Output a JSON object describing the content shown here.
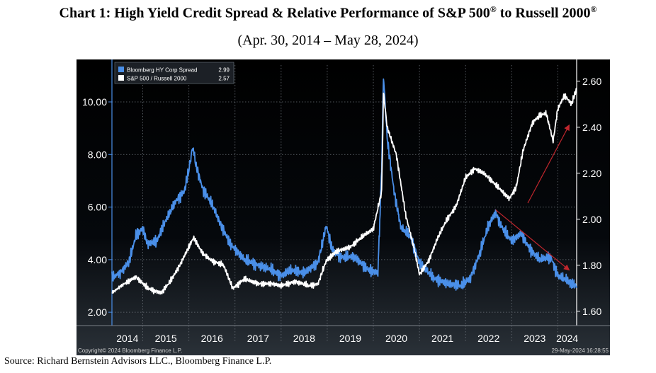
{
  "header": {
    "title_main": "Chart 1:  High Yield Credit Spread & Relative Performance of S&P 500",
    "title_reg1": "®",
    "title_mid": " to Russell 2000",
    "title_reg2": "®",
    "subtitle": "(Apr. 30, 2014 – May 28, 2024)"
  },
  "footer": {
    "source": "Source: Richard Bernstein Advisors LLC., Bloomberg Finance L.P."
  },
  "chart_data": {
    "type": "line",
    "title": "",
    "xlabel": "",
    "ylabel_left": "",
    "ylabel_right": "",
    "x_ticks": [
      "2014",
      "2015",
      "2016",
      "2017",
      "2018",
      "2019",
      "2020",
      "2021",
      "2022",
      "2023",
      "2024"
    ],
    "xlim": [
      2014.33,
      2024.41
    ],
    "y_left": {
      "lim": [
        1.6,
        11.4
      ],
      "ticks": [
        "2.00",
        "4.00",
        "6.00",
        "8.00",
        "10.00"
      ]
    },
    "y_right": {
      "lim": [
        1.55,
        2.67
      ],
      "ticks": [
        "1.60",
        "1.80",
        "2.00",
        "2.20",
        "2.40",
        "2.60"
      ]
    },
    "legend": {
      "placement": "top-left",
      "entries": [
        {
          "name": "Bloomberg HY Corp Spread",
          "last": "2.99",
          "color": "#4a8fe8"
        },
        {
          "name": "S&P 500 / Russell 2000",
          "last": "2.57",
          "color": "#ffffff"
        }
      ]
    },
    "copyright": "Copyright© 2024 Bloomberg Finance L.P.",
    "timestamp": "29-May-2024 16:28:55",
    "series": [
      {
        "name": "Bloomberg HY Corp Spread",
        "axis": "left",
        "color": "#4a8fe8",
        "x": [
          2014.33,
          2014.5,
          2014.7,
          2014.85,
          2015.0,
          2015.1,
          2015.3,
          2015.5,
          2015.7,
          2015.9,
          2016.0,
          2016.08,
          2016.15,
          2016.3,
          2016.5,
          2016.7,
          2016.9,
          2017.2,
          2017.5,
          2017.8,
          2018.0,
          2018.2,
          2018.5,
          2018.8,
          2018.98,
          2019.1,
          2019.3,
          2019.6,
          2019.9,
          2020.1,
          2020.18,
          2020.22,
          2020.3,
          2020.45,
          2020.6,
          2020.8,
          2021.0,
          2021.3,
          2021.6,
          2021.9,
          2022.1,
          2022.3,
          2022.5,
          2022.65,
          2022.8,
          2023.0,
          2023.2,
          2023.4,
          2023.6,
          2023.85,
          2024.0,
          2024.2,
          2024.41
        ],
        "y": [
          3.3,
          3.5,
          3.9,
          4.9,
          5.2,
          4.6,
          4.7,
          5.5,
          6.2,
          6.6,
          7.4,
          8.3,
          7.6,
          6.7,
          6.1,
          5.3,
          4.6,
          4.0,
          3.8,
          3.6,
          3.4,
          3.6,
          3.5,
          3.9,
          5.3,
          4.4,
          4.1,
          4.1,
          3.6,
          3.5,
          7.5,
          11.0,
          8.6,
          6.6,
          5.2,
          4.9,
          3.9,
          3.3,
          3.1,
          3.0,
          3.3,
          4.2,
          5.3,
          5.8,
          5.2,
          4.7,
          5.0,
          4.4,
          4.0,
          4.1,
          3.4,
          3.2,
          2.99
        ]
      },
      {
        "name": "S&P 500 / Russell 2000",
        "axis": "right",
        "color": "#ffffff",
        "x": [
          2014.33,
          2014.6,
          2014.85,
          2015.1,
          2015.4,
          2015.6,
          2015.8,
          2016.0,
          2016.1,
          2016.3,
          2016.5,
          2016.75,
          2016.95,
          2017.2,
          2017.5,
          2017.8,
          2018.0,
          2018.3,
          2018.6,
          2018.8,
          2018.98,
          2019.2,
          2019.5,
          2019.8,
          2020.0,
          2020.18,
          2020.22,
          2020.3,
          2020.5,
          2020.7,
          2020.9,
          2021.0,
          2021.2,
          2021.4,
          2021.6,
          2021.8,
          2022.0,
          2022.2,
          2022.4,
          2022.6,
          2022.8,
          2022.95,
          2023.1,
          2023.25,
          2023.35,
          2023.45,
          2023.6,
          2023.75,
          2023.9,
          2024.0,
          2024.15,
          2024.3,
          2024.41
        ],
        "y": [
          1.68,
          1.72,
          1.75,
          1.7,
          1.68,
          1.73,
          1.8,
          1.88,
          1.92,
          1.85,
          1.82,
          1.8,
          1.7,
          1.74,
          1.72,
          1.72,
          1.71,
          1.73,
          1.71,
          1.72,
          1.82,
          1.86,
          1.88,
          1.93,
          1.96,
          2.12,
          2.55,
          2.4,
          2.28,
          2.02,
          1.86,
          1.76,
          1.82,
          1.92,
          2.0,
          2.06,
          2.18,
          2.22,
          2.2,
          2.16,
          2.12,
          2.09,
          2.14,
          2.3,
          2.36,
          2.42,
          2.45,
          2.46,
          2.34,
          2.48,
          2.54,
          2.5,
          2.57
        ]
      }
    ],
    "annotations": [
      {
        "type": "arrow",
        "color": "#c0262d",
        "x": [
          2023.35,
          2024.25
        ],
        "y_axis": "right",
        "y": [
          2.07,
          2.41
        ]
      },
      {
        "type": "arrow",
        "color": "#c0262d",
        "x": [
          2022.65,
          2024.25
        ],
        "y_axis": "left",
        "y": [
          5.9,
          3.6
        ]
      }
    ]
  }
}
